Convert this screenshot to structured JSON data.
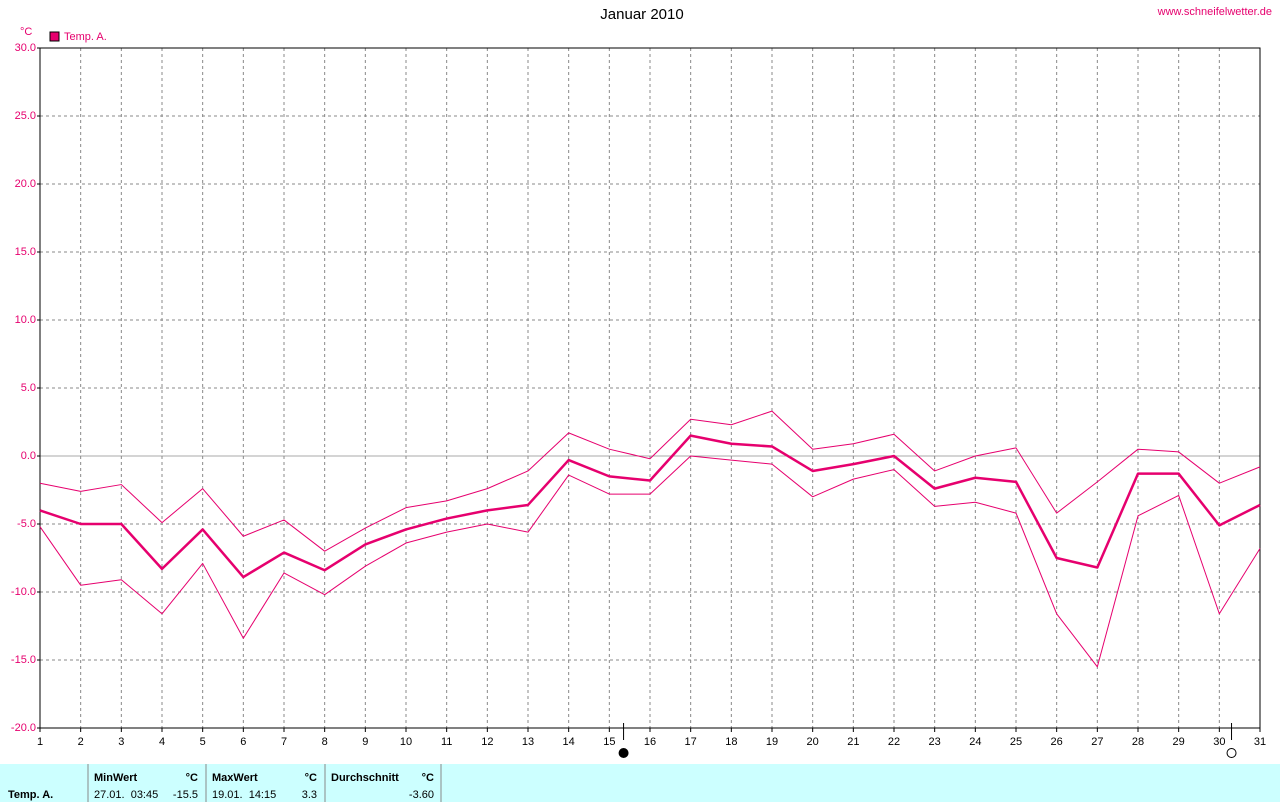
{
  "chart_data": {
    "type": "line",
    "title": "Januar 2010",
    "source": "www.schneifelwetter.de",
    "y_unit": "°C",
    "x": [
      1,
      2,
      3,
      4,
      5,
      6,
      7,
      8,
      9,
      10,
      11,
      12,
      13,
      14,
      15,
      16,
      17,
      18,
      19,
      20,
      21,
      22,
      23,
      24,
      25,
      26,
      27,
      28,
      29,
      30,
      31
    ],
    "xlim": [
      1,
      31
    ],
    "xticks": [
      1,
      2,
      3,
      4,
      5,
      6,
      7,
      8,
      9,
      10,
      11,
      12,
      13,
      14,
      15,
      16,
      17,
      18,
      19,
      20,
      21,
      22,
      23,
      24,
      25,
      26,
      27,
      28,
      29,
      30,
      31
    ],
    "ylim": [
      -20,
      30
    ],
    "yticks": [
      {
        "value": -20,
        "label": "-20.0"
      },
      {
        "value": -15,
        "label": "-15.0"
      },
      {
        "value": -10,
        "label": "-10.0"
      },
      {
        "value": -5,
        "label": "-5.0"
      },
      {
        "value": 0,
        "label": "0.0"
      },
      {
        "value": 5,
        "label": "5.0"
      },
      {
        "value": 10,
        "label": "10.0"
      },
      {
        "value": 15,
        "label": "15.0"
      },
      {
        "value": 20,
        "label": "20.0"
      },
      {
        "value": 25,
        "label": "25.0"
      },
      {
        "value": 30,
        "label": "30.0"
      }
    ],
    "grid": true,
    "legend": "top-left",
    "series": [
      {
        "name": "Temp. A.",
        "color": "#e6006e",
        "width": 2.5,
        "values": [
          -4.0,
          -5.0,
          -5.0,
          -8.3,
          -5.4,
          -8.9,
          -7.1,
          -8.4,
          -6.5,
          -5.4,
          -4.6,
          -4.0,
          -3.6,
          -0.3,
          -1.5,
          -1.8,
          1.5,
          0.9,
          0.7,
          -1.1,
          -0.6,
          0.0,
          -2.4,
          -1.6,
          -1.9,
          -7.5,
          -8.2,
          -1.3,
          -1.3,
          -5.1,
          -3.6
        ]
      },
      {
        "color": "#e6006e",
        "width": 1,
        "values": [
          -2.0,
          -2.6,
          -2.1,
          -4.9,
          -2.4,
          -5.9,
          -4.7,
          -7.0,
          -5.3,
          -3.8,
          -3.3,
          -2.4,
          -1.1,
          1.7,
          0.5,
          -0.2,
          2.7,
          2.3,
          3.3,
          0.5,
          0.9,
          1.6,
          -1.1,
          0.0,
          0.6,
          -4.2,
          -1.9,
          0.5,
          0.3,
          -2.0,
          -0.8
        ]
      },
      {
        "color": "#e6006e",
        "width": 1,
        "values": [
          -5.2,
          -9.5,
          -9.1,
          -11.6,
          -7.9,
          -13.4,
          -8.6,
          -10.2,
          -8.1,
          -6.4,
          -5.6,
          -5.0,
          -5.6,
          -1.4,
          -2.8,
          -2.8,
          0.0,
          -0.3,
          -0.6,
          -3.0,
          -1.7,
          -1.0,
          -3.7,
          -3.4,
          -4.2,
          -11.6,
          -15.5,
          -4.4,
          -2.9,
          -11.6,
          -6.8
        ]
      }
    ],
    "moon_phases": [
      {
        "x": 15.35,
        "fill": "#000000"
      },
      {
        "x": 30.3,
        "fill": "#ffffff"
      }
    ]
  },
  "footer": {
    "row_label": "Temp. A.",
    "min": {
      "title": "MinWert",
      "unit": "°C",
      "time": "27.01.  03:45",
      "value": "-15.5"
    },
    "max": {
      "title": "MaxWert",
      "unit": "°C",
      "time": "19.01.  14:15",
      "value": "3.3"
    },
    "avg": {
      "title": "Durchschnitt",
      "unit": "°C",
      "value": "-3.60"
    }
  }
}
